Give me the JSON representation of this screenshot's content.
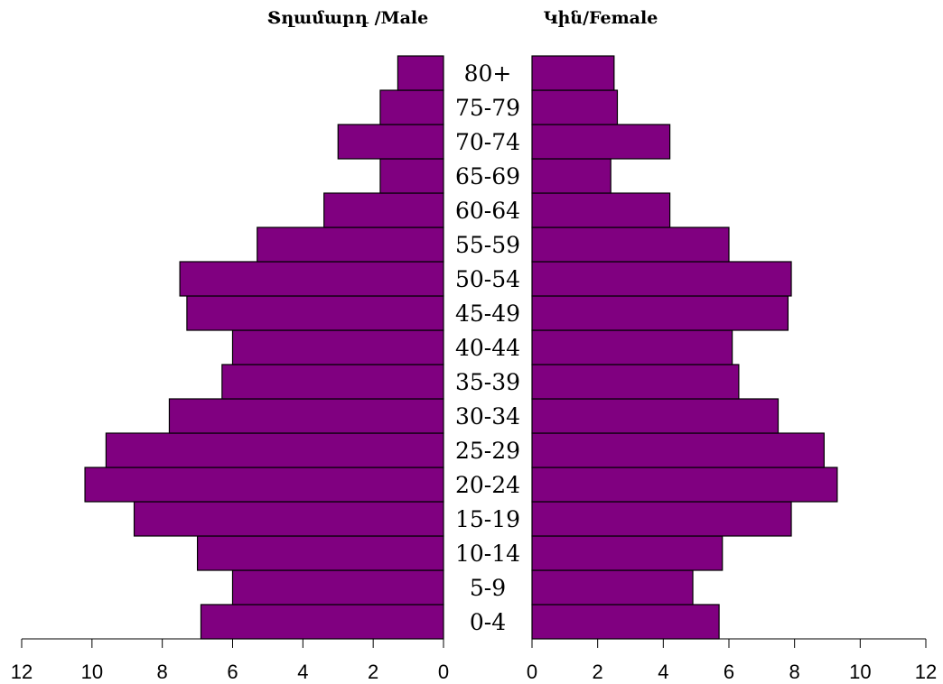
{
  "chart_data": {
    "type": "bar",
    "orientation": "horizontal",
    "layout": "population-pyramid",
    "categories": [
      "0-4",
      "5-9",
      "10-14",
      "15-19",
      "20-24",
      "25-29",
      "30-34",
      "35-39",
      "40-44",
      "45-49",
      "50-54",
      "55-59",
      "60-64",
      "65-69",
      "70-74",
      "75-79",
      "80+"
    ],
    "series": [
      {
        "name": "Տղամարդ /Male",
        "side": "left",
        "values": [
          6.9,
          6.0,
          7.0,
          8.8,
          10.2,
          9.6,
          7.8,
          6.3,
          6.0,
          7.3,
          7.5,
          5.3,
          3.4,
          1.8,
          3.0,
          1.8,
          1.3
        ]
      },
      {
        "name": "Կին/Female",
        "side": "right",
        "values": [
          5.7,
          4.9,
          5.8,
          7.9,
          9.3,
          8.9,
          7.5,
          6.3,
          6.1,
          7.8,
          7.9,
          6.0,
          4.2,
          2.4,
          4.2,
          2.6,
          2.5
        ]
      }
    ],
    "left_axis": {
      "range": [
        12,
        0
      ],
      "ticks": [
        "12",
        "10",
        "8",
        "6",
        "4",
        "2",
        "0"
      ]
    },
    "right_axis": {
      "range": [
        0,
        12
      ],
      "ticks": [
        "0",
        "2",
        "4",
        "6",
        "8",
        "10",
        "12"
      ]
    },
    "colors": {
      "bar": "#800080",
      "outline": "#000000"
    },
    "grid": false
  }
}
